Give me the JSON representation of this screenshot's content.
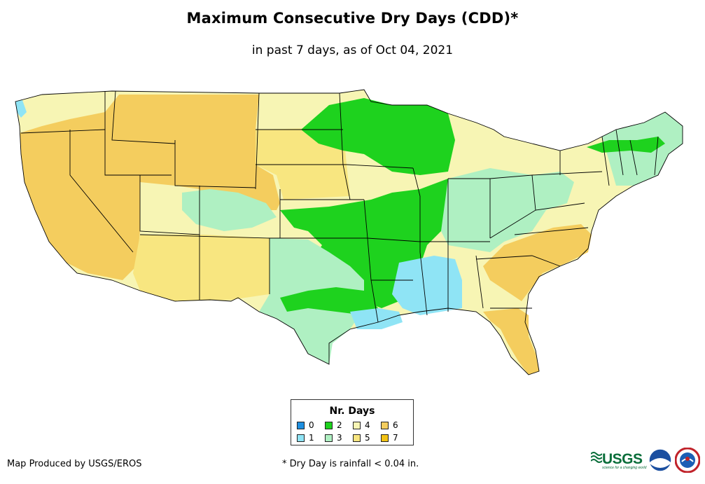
{
  "header": {
    "title": "Maximum Consecutive Dry Days (CDD)*",
    "subtitle": "in past 7 days, as of Oct 04, 2021"
  },
  "legend": {
    "title": "Nr. Days",
    "items": [
      {
        "label": "0",
        "color": "#1e8fe0"
      },
      {
        "label": "2",
        "color": "#1ed21e"
      },
      {
        "label": "4",
        "color": "#f7f5b4"
      },
      {
        "label": "6",
        "color": "#f4cd5e"
      },
      {
        "label": "1",
        "color": "#8fe4f5"
      },
      {
        "label": "3",
        "color": "#aff0c2"
      },
      {
        "label": "5",
        "color": "#f8e680"
      },
      {
        "label": "7",
        "color": "#f2c214"
      }
    ]
  },
  "footer": {
    "credit": "Map Produced by USGS/EROS",
    "note": "* Dry Day is rainfall < 0.04 in."
  },
  "logos": {
    "usgs": "USGS",
    "usgs_tagline": "science for a changing world",
    "noaa": "NOAA",
    "nws": "NWS"
  },
  "colors": {
    "state_border": "#000000",
    "background": "#ffffff"
  }
}
